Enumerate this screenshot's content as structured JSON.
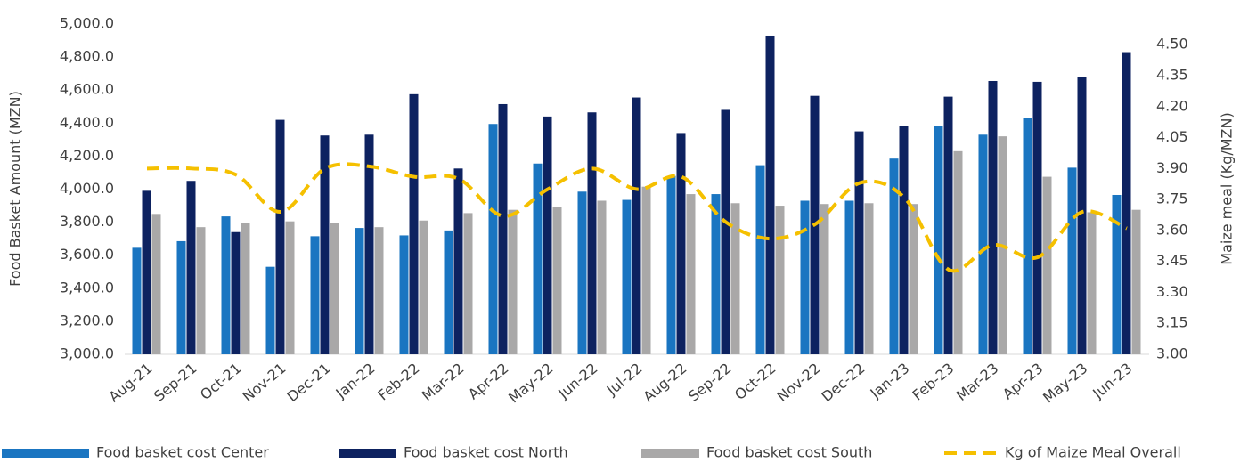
{
  "chart_data": {
    "type": "bar",
    "ylabel": "Food Basket Amount (MZN)",
    "y2label": "Maize meal (Kg/MZN)",
    "categories": [
      "Aug-21",
      "Sep-21",
      "Oct-21",
      "Nov-21",
      "Dec-21",
      "Jan-22",
      "Feb-22",
      "Mar-22",
      "Apr-22",
      "May-22",
      "Jun-22",
      "Jul-22",
      "Aug-22",
      "Sep-22",
      "Oct-22",
      "Nov-22",
      "Dec-22",
      "Jan-23",
      "Feb-23",
      "Mar-23",
      "Apr-23",
      "May-23",
      "Jun-23"
    ],
    "series": [
      {
        "name": "Food basket cost Center",
        "type": "bar",
        "color": "#1a75c1",
        "values": [
          3645,
          3685,
          3835,
          3530,
          3715,
          3765,
          3720,
          3750,
          4395,
          4155,
          3985,
          3935,
          4080,
          3970,
          4145,
          3930,
          3930,
          4185,
          4380,
          4330,
          4430,
          4130,
          3965
        ]
      },
      {
        "name": "Food basket cost North",
        "type": "bar",
        "color": "#0d2260",
        "values": [
          3990,
          4050,
          3740,
          4420,
          4325,
          4330,
          4575,
          4125,
          4515,
          4440,
          4465,
          4555,
          4340,
          4480,
          4930,
          4565,
          4350,
          4385,
          4560,
          4655,
          4650,
          4680,
          4830
        ]
      },
      {
        "name": "Food basket cost South",
        "type": "bar",
        "color": "#a9a8a8",
        "values": [
          3850,
          3770,
          3795,
          3805,
          3795,
          3770,
          3810,
          3855,
          3875,
          3890,
          3930,
          4015,
          3970,
          3915,
          3900,
          3910,
          3915,
          3910,
          4230,
          4320,
          4075,
          3860,
          3875
        ]
      },
      {
        "name": "Kg of Maize Meal Overall",
        "type": "line",
        "axis": "y2",
        "color": "#f5c000",
        "dashed": true,
        "values": [
          3.9,
          3.9,
          3.87,
          3.69,
          3.9,
          3.91,
          3.86,
          3.85,
          3.67,
          3.8,
          3.9,
          3.8,
          3.86,
          3.64,
          3.56,
          3.63,
          3.83,
          3.76,
          3.41,
          3.53,
          3.47,
          3.69,
          3.61
        ]
      }
    ],
    "ylim": [
      3000,
      5000
    ],
    "yticks": [
      {
        "value": 3000,
        "label": "3,000.0"
      },
      {
        "value": 3200,
        "label": "3,200.0"
      },
      {
        "value": 3400,
        "label": "3,400.0"
      },
      {
        "value": 3600,
        "label": "3,600.0"
      },
      {
        "value": 3800,
        "label": "3,800.0"
      },
      {
        "value": 4000,
        "label": "4,000.0"
      },
      {
        "value": 4200,
        "label": "4,200.0"
      },
      {
        "value": 4400,
        "label": "4,400.0"
      },
      {
        "value": 4600,
        "label": "4,600.0"
      },
      {
        "value": 4800,
        "label": "4,800.0"
      },
      {
        "value": 5000,
        "label": "5,000.0"
      }
    ],
    "y2lim": [
      3,
      4.6
    ],
    "y2ticks": [
      {
        "value": 3,
        "label": "3.00"
      },
      3.15,
      {
        "value": 3.3,
        "label": "3.30"
      },
      3.45,
      {
        "value": 3.6,
        "label": "3.60"
      },
      3.75,
      {
        "value": 3.9,
        "label": "3.90"
      },
      4.05,
      {
        "value": 4.2,
        "label": "4.20"
      },
      4.35,
      {
        "value": 4.5,
        "label": "4.50"
      }
    ],
    "legend": "bottom"
  }
}
